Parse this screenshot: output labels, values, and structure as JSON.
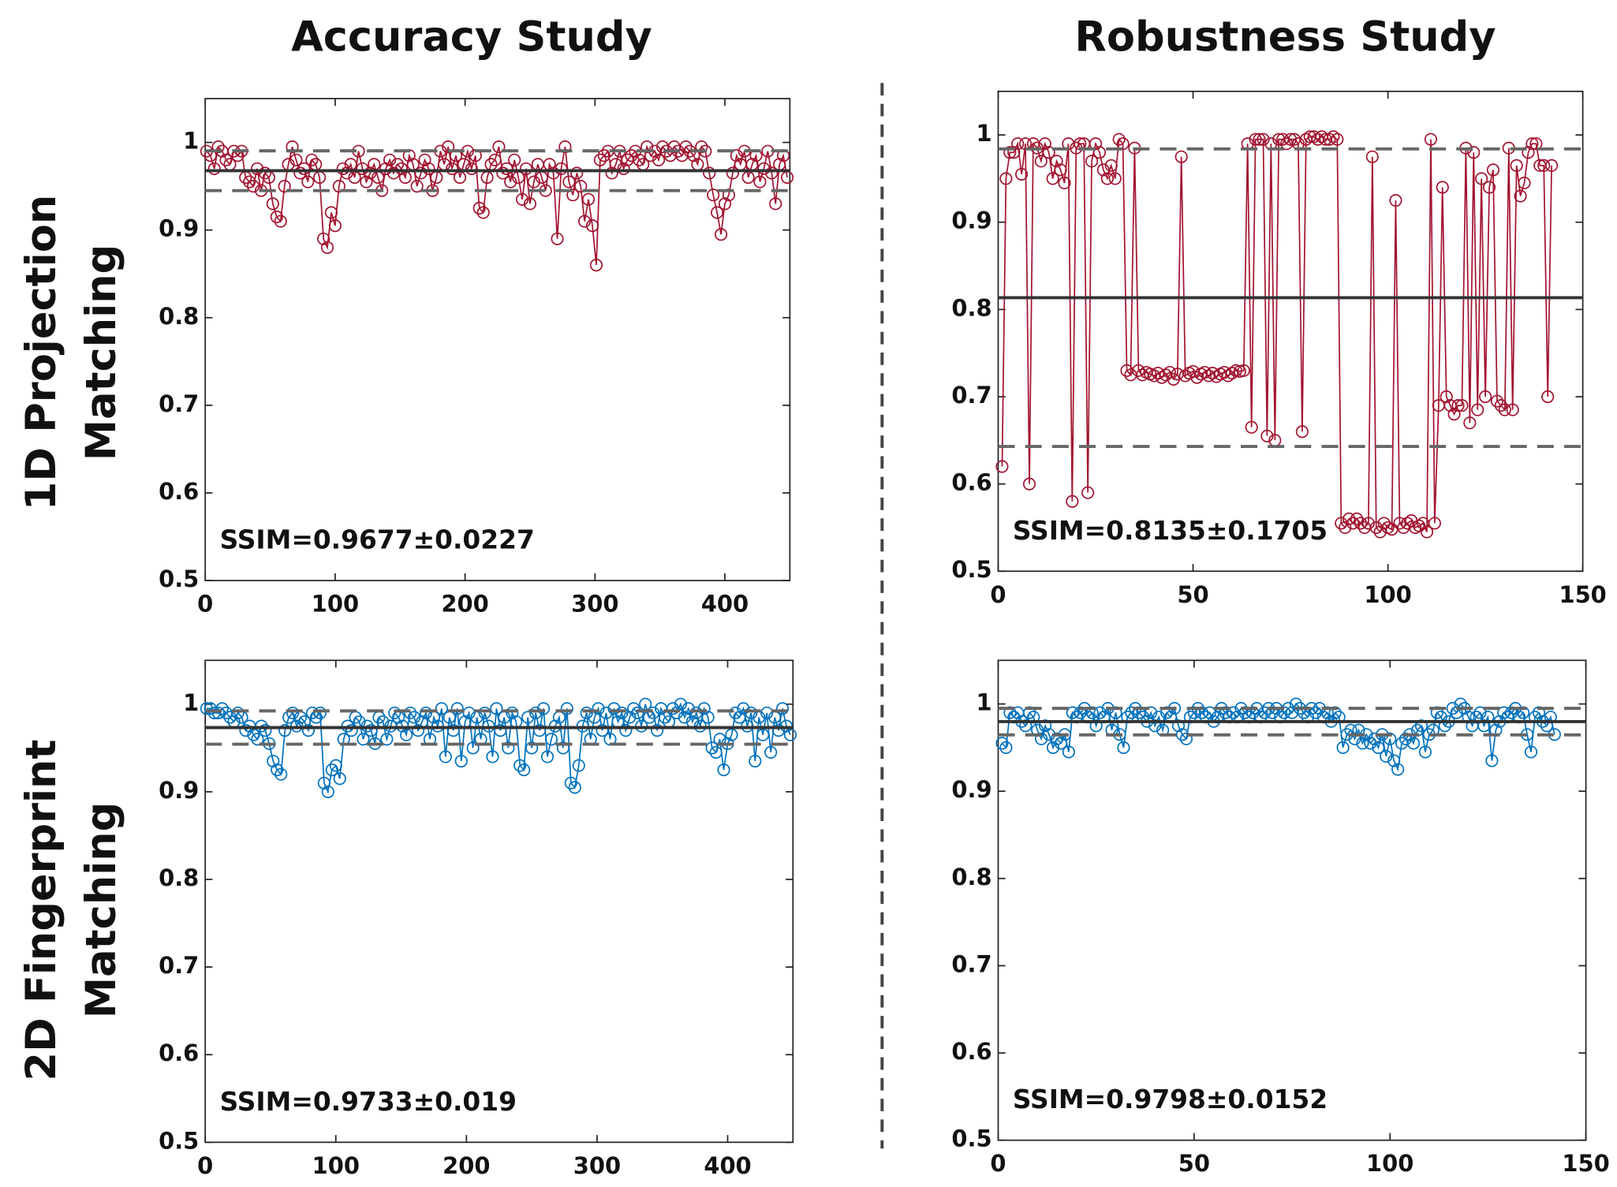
{
  "figure": {
    "column_titles": [
      "Accuracy Study",
      "Robustness Study"
    ],
    "row_labels": [
      [
        "1D Projection",
        "Matching"
      ],
      [
        "2D Fingerprint",
        "Matching"
      ]
    ]
  },
  "chart_data": [
    {
      "type": "line",
      "color": "#a2142f",
      "annotation": "SSIM=0.9677±0.0227",
      "mean_line": 0.9677,
      "std_lines": [
        0.945,
        0.9904
      ],
      "xlim": [
        0,
        450
      ],
      "xticks": [
        0,
        100,
        200,
        300,
        400
      ],
      "ylim": [
        0.5,
        1.05
      ],
      "yticks": [
        0.5,
        0.6,
        0.7,
        0.8,
        0.9,
        1
      ],
      "x": [
        1,
        4,
        7,
        10,
        13,
        16,
        19,
        22,
        25,
        28,
        31,
        34,
        37,
        40,
        43,
        46,
        49,
        52,
        55,
        58,
        61,
        64,
        67,
        70,
        73,
        76,
        79,
        82,
        85,
        88,
        91,
        94,
        97,
        100,
        103,
        106,
        109,
        112,
        115,
        118,
        121,
        124,
        127,
        130,
        133,
        136,
        139,
        142,
        145,
        148,
        151,
        154,
        157,
        160,
        163,
        166,
        169,
        172,
        175,
        178,
        181,
        184,
        187,
        190,
        193,
        196,
        199,
        202,
        205,
        208,
        211,
        214,
        217,
        220,
        223,
        226,
        229,
        232,
        235,
        238,
        241,
        244,
        247,
        250,
        253,
        256,
        259,
        262,
        265,
        268,
        271,
        274,
        277,
        280,
        283,
        286,
        289,
        292,
        295,
        298,
        301,
        304,
        307,
        310,
        313,
        316,
        319,
        322,
        325,
        328,
        331,
        334,
        337,
        340,
        343,
        346,
        349,
        352,
        355,
        358,
        361,
        364,
        367,
        370,
        373,
        376,
        379,
        382,
        385,
        388,
        391,
        394,
        397,
        400,
        403,
        406,
        409,
        412,
        415,
        418,
        421,
        424,
        427,
        430,
        433,
        436,
        439,
        442,
        445,
        448
      ],
      "values": [
        0.99,
        0.985,
        0.97,
        0.995,
        0.99,
        0.98,
        0.975,
        0.99,
        0.985,
        0.99,
        0.96,
        0.955,
        0.95,
        0.97,
        0.945,
        0.965,
        0.96,
        0.93,
        0.915,
        0.91,
        0.95,
        0.975,
        0.995,
        0.98,
        0.965,
        0.97,
        0.955,
        0.98,
        0.975,
        0.96,
        0.89,
        0.88,
        0.92,
        0.905,
        0.95,
        0.97,
        0.965,
        0.975,
        0.96,
        0.99,
        0.97,
        0.955,
        0.965,
        0.975,
        0.96,
        0.945,
        0.97,
        0.98,
        0.965,
        0.975,
        0.97,
        0.96,
        0.985,
        0.975,
        0.95,
        0.965,
        0.98,
        0.97,
        0.945,
        0.96,
        0.99,
        0.975,
        0.995,
        0.97,
        0.985,
        0.96,
        0.975,
        0.99,
        0.97,
        0.985,
        0.925,
        0.92,
        0.96,
        0.975,
        0.98,
        0.995,
        0.965,
        0.97,
        0.955,
        0.98,
        0.96,
        0.935,
        0.97,
        0.93,
        0.955,
        0.975,
        0.96,
        0.945,
        0.975,
        0.965,
        0.89,
        0.97,
        0.995,
        0.955,
        0.94,
        0.965,
        0.95,
        0.91,
        0.935,
        0.905,
        0.86,
        0.98,
        0.985,
        0.99,
        0.965,
        0.975,
        0.99,
        0.97,
        0.98,
        0.985,
        0.99,
        0.98,
        0.975,
        0.995,
        0.985,
        0.99,
        0.98,
        0.995,
        0.99,
        0.985,
        0.995,
        0.99,
        0.985,
        0.995,
        0.99,
        0.985,
        0.975,
        0.995,
        0.99,
        0.965,
        0.94,
        0.92,
        0.895,
        0.93,
        0.94,
        0.965,
        0.985,
        0.975,
        0.99,
        0.96,
        0.975,
        0.985,
        0.955,
        0.97,
        0.99,
        0.965,
        0.93,
        0.975,
        0.985,
        0.96
      ]
    },
    {
      "type": "line",
      "color": "#a2142f",
      "annotation": "SSIM=0.8135±0.1705",
      "mean_line": 0.8135,
      "std_lines": [
        0.643,
        0.984
      ],
      "xlim": [
        0,
        150
      ],
      "xticks": [
        0,
        50,
        100,
        150
      ],
      "ylim": [
        0.5,
        1.05
      ],
      "yticks": [
        0.5,
        0.6,
        0.7,
        0.8,
        0.9,
        1
      ],
      "x": [
        1,
        2,
        3,
        4,
        5,
        6,
        7,
        8,
        9,
        10,
        11,
        12,
        13,
        14,
        15,
        16,
        17,
        18,
        19,
        20,
        21,
        22,
        23,
        24,
        25,
        26,
        27,
        28,
        29,
        30,
        31,
        32,
        33,
        34,
        35,
        36,
        37,
        38,
        39,
        40,
        41,
        42,
        43,
        44,
        45,
        46,
        47,
        48,
        49,
        50,
        51,
        52,
        53,
        54,
        55,
        56,
        57,
        58,
        59,
        60,
        61,
        62,
        63,
        64,
        65,
        66,
        67,
        68,
        69,
        70,
        71,
        72,
        73,
        74,
        75,
        76,
        77,
        78,
        79,
        80,
        81,
        82,
        83,
        84,
        85,
        86,
        87,
        88,
        89,
        90,
        91,
        92,
        93,
        94,
        95,
        96,
        97,
        98,
        99,
        100,
        101,
        102,
        103,
        104,
        105,
        106,
        107,
        108,
        109,
        110,
        111,
        112,
        113,
        114,
        115,
        116,
        117,
        118,
        119,
        120,
        121,
        122,
        123,
        124,
        125,
        126,
        127,
        128,
        129,
        130,
        131,
        132,
        133,
        134,
        135,
        136,
        137,
        138,
        139,
        140,
        141,
        142
      ],
      "values": [
        0.62,
        0.95,
        0.98,
        0.98,
        0.99,
        0.955,
        0.99,
        0.6,
        0.99,
        0.985,
        0.97,
        0.99,
        0.98,
        0.95,
        0.97,
        0.96,
        0.945,
        0.99,
        0.58,
        0.985,
        0.99,
        0.99,
        0.59,
        0.97,
        0.99,
        0.98,
        0.96,
        0.95,
        0.965,
        0.95,
        0.995,
        0.99,
        0.73,
        0.725,
        0.985,
        0.73,
        0.725,
        0.728,
        0.726,
        0.724,
        0.727,
        0.722,
        0.725,
        0.728,
        0.72,
        0.726,
        0.975,
        0.724,
        0.727,
        0.729,
        0.722,
        0.726,
        0.728,
        0.724,
        0.727,
        0.723,
        0.726,
        0.728,
        0.724,
        0.727,
        0.73,
        0.729,
        0.73,
        0.99,
        0.665,
        0.995,
        0.995,
        0.995,
        0.655,
        0.99,
        0.65,
        0.995,
        0.995,
        0.99,
        0.995,
        0.995,
        0.99,
        0.66,
        0.995,
        0.998,
        0.998,
        0.995,
        0.998,
        0.995,
        0.995,
        0.998,
        0.995,
        0.555,
        0.55,
        0.56,
        0.555,
        0.56,
        0.555,
        0.55,
        0.555,
        0.975,
        0.55,
        0.545,
        0.555,
        0.55,
        0.548,
        0.925,
        0.555,
        0.55,
        0.555,
        0.558,
        0.55,
        0.552,
        0.555,
        0.545,
        0.995,
        0.555,
        0.69,
        0.94,
        0.7,
        0.69,
        0.68,
        0.69,
        0.69,
        0.985,
        0.67,
        0.98,
        0.685,
        0.95,
        0.7,
        0.94,
        0.96,
        0.695,
        0.69,
        0.685,
        0.985,
        0.685,
        0.965,
        0.93,
        0.945,
        0.98,
        0.99,
        0.99,
        0.965,
        0.965,
        0.7,
        0.965
      ]
    },
    {
      "type": "line",
      "color": "#0072bd",
      "annotation": "SSIM=0.9733±0.019",
      "mean_line": 0.9733,
      "std_lines": [
        0.9543,
        0.9923
      ],
      "xlim": [
        0,
        450
      ],
      "xticks": [
        0,
        100,
        200,
        300,
        400
      ],
      "ylim": [
        0.5,
        1.05
      ],
      "yticks": [
        0.5,
        0.6,
        0.7,
        0.8,
        0.9,
        1
      ],
      "x": [
        1,
        4,
        7,
        10,
        13,
        16,
        19,
        22,
        25,
        28,
        31,
        34,
        37,
        40,
        43,
        46,
        49,
        52,
        55,
        58,
        61,
        64,
        67,
        70,
        73,
        76,
        79,
        82,
        85,
        88,
        91,
        94,
        97,
        100,
        103,
        106,
        109,
        112,
        115,
        118,
        121,
        124,
        127,
        130,
        133,
        136,
        139,
        142,
        145,
        148,
        151,
        154,
        157,
        160,
        163,
        166,
        169,
        172,
        175,
        178,
        181,
        184,
        187,
        190,
        193,
        196,
        199,
        202,
        205,
        208,
        211,
        214,
        217,
        220,
        223,
        226,
        229,
        232,
        235,
        238,
        241,
        244,
        247,
        250,
        253,
        256,
        259,
        262,
        265,
        268,
        271,
        274,
        277,
        280,
        283,
        286,
        289,
        292,
        295,
        298,
        301,
        304,
        307,
        310,
        313,
        316,
        319,
        322,
        325,
        328,
        331,
        334,
        337,
        340,
        343,
        346,
        349,
        352,
        355,
        358,
        361,
        364,
        367,
        370,
        373,
        376,
        379,
        382,
        385,
        388,
        391,
        394,
        397,
        400,
        403,
        406,
        409,
        412,
        415,
        418,
        421,
        424,
        427,
        430,
        433,
        436,
        439,
        442,
        445,
        448
      ],
      "values": [
        0.995,
        0.995,
        0.99,
        0.99,
        0.995,
        0.99,
        0.985,
        0.98,
        0.99,
        0.985,
        0.97,
        0.975,
        0.965,
        0.96,
        0.975,
        0.97,
        0.955,
        0.935,
        0.925,
        0.92,
        0.97,
        0.985,
        0.99,
        0.975,
        0.985,
        0.98,
        0.97,
        0.99,
        0.985,
        0.99,
        0.91,
        0.9,
        0.925,
        0.93,
        0.915,
        0.96,
        0.975,
        0.97,
        0.985,
        0.98,
        0.96,
        0.975,
        0.97,
        0.955,
        0.985,
        0.98,
        0.96,
        0.975,
        0.99,
        0.985,
        0.975,
        0.965,
        0.99,
        0.985,
        0.97,
        0.98,
        0.99,
        0.96,
        0.985,
        0.975,
        0.995,
        0.94,
        0.985,
        0.97,
        0.995,
        0.935,
        0.98,
        0.99,
        0.95,
        0.985,
        0.96,
        0.99,
        0.975,
        0.94,
        0.995,
        0.97,
        0.985,
        0.95,
        0.99,
        0.98,
        0.93,
        0.925,
        0.985,
        0.95,
        0.99,
        0.97,
        0.995,
        0.94,
        0.96,
        0.975,
        0.985,
        0.95,
        0.995,
        0.91,
        0.905,
        0.93,
        0.975,
        0.99,
        0.96,
        0.985,
        0.995,
        0.97,
        0.99,
        0.96,
        0.995,
        0.98,
        0.99,
        0.97,
        0.985,
        0.995,
        0.99,
        0.975,
        1.0,
        0.985,
        0.99,
        0.97,
        0.995,
        0.985,
        0.98,
        0.995,
        0.99,
        1.0,
        0.985,
        0.995,
        0.98,
        0.99,
        0.975,
        0.995,
        0.985,
        0.95,
        0.945,
        0.96,
        0.925,
        0.955,
        0.965,
        0.99,
        0.985,
        0.995,
        0.975,
        0.99,
        0.935,
        0.985,
        0.965,
        0.99,
        0.945,
        0.985,
        0.97,
        0.995,
        0.975,
        0.965
      ]
    },
    {
      "type": "line",
      "color": "#0072bd",
      "annotation": "SSIM=0.9798±0.0152",
      "mean_line": 0.9798,
      "std_lines": [
        0.9646,
        0.995
      ],
      "xlim": [
        0,
        150
      ],
      "xticks": [
        0,
        50,
        100,
        150
      ],
      "ylim": [
        0.5,
        1.05
      ],
      "yticks": [
        0.5,
        0.6,
        0.7,
        0.8,
        0.9,
        1
      ],
      "x": [
        1,
        2,
        3,
        4,
        5,
        6,
        7,
        8,
        9,
        10,
        11,
        12,
        13,
        14,
        15,
        16,
        17,
        18,
        19,
        20,
        21,
        22,
        23,
        24,
        25,
        26,
        27,
        28,
        29,
        30,
        31,
        32,
        33,
        34,
        35,
        36,
        37,
        38,
        39,
        40,
        41,
        42,
        43,
        44,
        45,
        46,
        47,
        48,
        49,
        50,
        51,
        52,
        53,
        54,
        55,
        56,
        57,
        58,
        59,
        60,
        61,
        62,
        63,
        64,
        65,
        66,
        67,
        68,
        69,
        70,
        71,
        72,
        73,
        74,
        75,
        76,
        77,
        78,
        79,
        80,
        81,
        82,
        83,
        84,
        85,
        86,
        87,
        88,
        89,
        90,
        91,
        92,
        93,
        94,
        95,
        96,
        97,
        98,
        99,
        100,
        101,
        102,
        103,
        104,
        105,
        106,
        107,
        108,
        109,
        110,
        111,
        112,
        113,
        114,
        115,
        116,
        117,
        118,
        119,
        120,
        121,
        122,
        123,
        124,
        125,
        126,
        127,
        128,
        129,
        130,
        131,
        132,
        133,
        134,
        135,
        136,
        137,
        138,
        139,
        140,
        141,
        142
      ],
      "values": [
        0.955,
        0.95,
        0.99,
        0.985,
        0.99,
        0.98,
        0.975,
        0.99,
        0.985,
        0.97,
        0.96,
        0.975,
        0.965,
        0.95,
        0.96,
        0.955,
        0.965,
        0.945,
        0.99,
        0.985,
        0.99,
        0.995,
        0.985,
        0.99,
        0.975,
        0.99,
        0.985,
        0.995,
        0.97,
        0.99,
        0.965,
        0.95,
        0.985,
        0.99,
        0.995,
        0.99,
        0.985,
        0.98,
        0.99,
        0.975,
        0.985,
        0.97,
        0.99,
        0.985,
        0.995,
        0.975,
        0.965,
        0.96,
        0.985,
        0.99,
        0.995,
        0.99,
        0.985,
        0.99,
        0.98,
        0.985,
        0.995,
        0.99,
        0.985,
        0.99,
        0.985,
        0.995,
        0.99,
        0.985,
        0.99,
        0.995,
        0.985,
        0.99,
        0.995,
        0.99,
        0.995,
        0.985,
        0.99,
        0.995,
        0.99,
        1.0,
        0.995,
        0.99,
        0.985,
        0.995,
        0.99,
        0.995,
        0.985,
        0.99,
        0.98,
        0.99,
        0.985,
        0.95,
        0.965,
        0.97,
        0.96,
        0.97,
        0.955,
        0.965,
        0.955,
        0.96,
        0.95,
        0.965,
        0.94,
        0.96,
        0.935,
        0.925,
        0.955,
        0.96,
        0.965,
        0.955,
        0.97,
        0.975,
        0.945,
        0.965,
        0.97,
        0.99,
        0.985,
        0.975,
        0.98,
        0.995,
        0.99,
        1.0,
        0.995,
        0.985,
        0.975,
        0.985,
        0.99,
        0.975,
        0.985,
        0.935,
        0.97,
        0.98,
        0.99,
        0.985,
        0.99,
        0.995,
        0.985,
        0.99,
        0.965,
        0.945,
        0.985,
        0.99,
        0.98,
        0.975,
        0.985,
        0.965
      ]
    }
  ]
}
